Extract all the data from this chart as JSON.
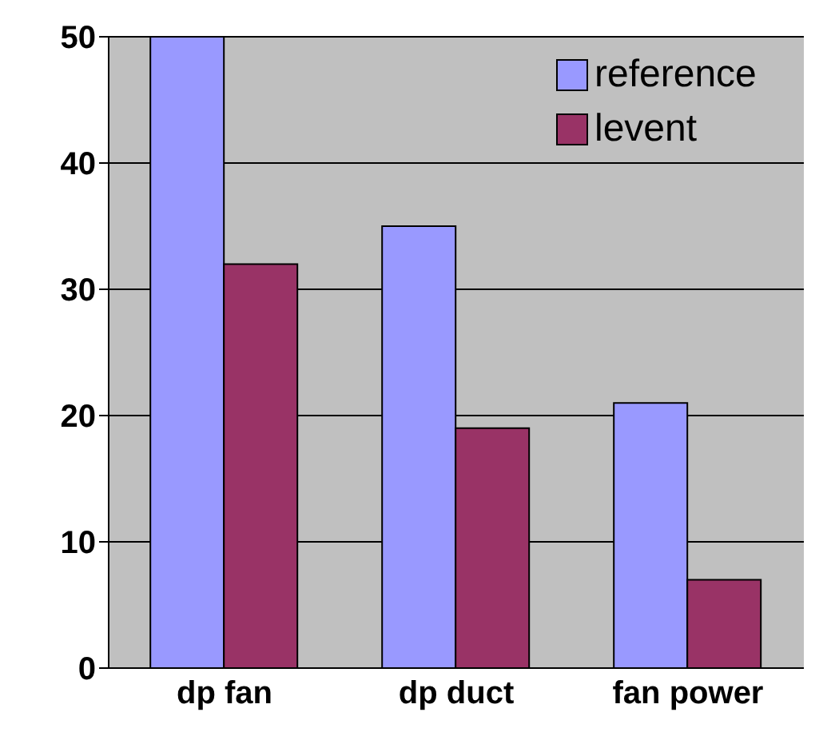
{
  "chart_data": {
    "type": "bar",
    "categories": [
      "dp fan",
      "dp duct",
      "fan power"
    ],
    "series": [
      {
        "name": "reference",
        "color": "#9999ff",
        "values": [
          50,
          35,
          21
        ]
      },
      {
        "name": "levent",
        "color": "#993366",
        "values": [
          32,
          19,
          7
        ]
      }
    ],
    "ylim": [
      0,
      50
    ],
    "yticks": [
      0,
      10,
      20,
      30,
      40,
      50
    ],
    "grid": "y",
    "legend": "top right"
  }
}
